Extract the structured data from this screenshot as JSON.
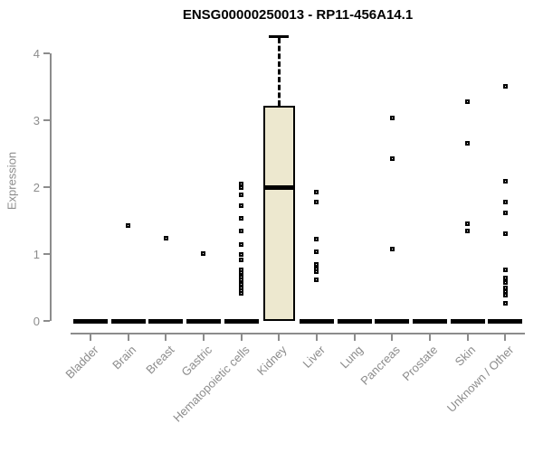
{
  "chart_data": {
    "type": "boxplot",
    "title": "ENSG00000250013 - RP11-456A14.1",
    "ylabel": "Expression",
    "xlabel": "",
    "ylim": [
      0,
      4
    ],
    "yticks": [
      0,
      1,
      2,
      3,
      4
    ],
    "grid": false,
    "legend": "none",
    "categories": [
      "Bladder",
      "Brain",
      "Breast",
      "Gastric",
      "Hematopoietic cells",
      "Kidney",
      "Liver",
      "Lung",
      "Pancreas",
      "Prostate",
      "Skin",
      "Unknown / Other"
    ],
    "series": [
      {
        "category": "Bladder",
        "median": 0,
        "q1": 0,
        "q3": 0,
        "whisker_low": 0,
        "whisker_high": 0,
        "points": []
      },
      {
        "category": "Brain",
        "median": 0,
        "q1": 0,
        "q3": 0,
        "whisker_low": 0,
        "whisker_high": 0,
        "points": [
          1.43
        ]
      },
      {
        "category": "Breast",
        "median": 0,
        "q1": 0,
        "q3": 0,
        "whisker_low": 0,
        "whisker_high": 0,
        "points": [
          1.24
        ]
      },
      {
        "category": "Gastric",
        "median": 0,
        "q1": 0,
        "q3": 0,
        "whisker_low": 0,
        "whisker_high": 0,
        "points": [
          1.01
        ]
      },
      {
        "category": "Hematopoietic cells",
        "median": 0,
        "q1": 0,
        "q3": 0,
        "whisker_low": 0,
        "whisker_high": 0,
        "points": [
          2.05,
          1.99,
          1.89,
          1.72,
          1.53,
          1.34,
          1.14,
          0.99,
          0.91,
          0.77,
          0.72,
          0.66,
          0.61,
          0.55,
          0.5,
          0.45,
          0.41
        ]
      },
      {
        "category": "Kidney",
        "median": 2.0,
        "q1": 0,
        "q3": 3.22,
        "whisker_low": 0,
        "whisker_high": 4.25,
        "points": []
      },
      {
        "category": "Liver",
        "median": 0,
        "q1": 0,
        "q3": 0,
        "whisker_low": 0,
        "whisker_high": 0,
        "points": [
          1.92,
          1.78,
          1.22,
          1.03,
          0.85,
          0.78,
          0.74,
          0.62
        ]
      },
      {
        "category": "Lung",
        "median": 0,
        "q1": 0,
        "q3": 0,
        "whisker_low": 0,
        "whisker_high": 0,
        "points": []
      },
      {
        "category": "Pancreas",
        "median": 0,
        "q1": 0,
        "q3": 0,
        "whisker_low": 0,
        "whisker_high": 0,
        "points": [
          3.03,
          2.42,
          1.08
        ]
      },
      {
        "category": "Prostate",
        "median": 0,
        "q1": 0,
        "q3": 0,
        "whisker_low": 0,
        "whisker_high": 0,
        "points": []
      },
      {
        "category": "Skin",
        "median": 0,
        "q1": 0,
        "q3": 0,
        "whisker_low": 0,
        "whisker_high": 0,
        "points": [
          3.28,
          2.66,
          1.45,
          1.35
        ]
      },
      {
        "category": "Unknown / Other",
        "median": 0,
        "q1": 0,
        "q3": 0,
        "whisker_low": 0,
        "whisker_high": 0,
        "points": [
          3.51,
          2.09,
          1.78,
          1.62,
          1.3,
          0.77,
          0.64,
          0.57,
          0.5,
          0.44,
          0.38,
          0.27
        ]
      }
    ],
    "colors": {
      "box_fill": "#EDE8CF",
      "box_border": "#000000",
      "marker": "#000000",
      "median": "#000000",
      "axis": "#8c8c8c",
      "title": "#000000",
      "tick_label": "#8c8c8c"
    }
  }
}
